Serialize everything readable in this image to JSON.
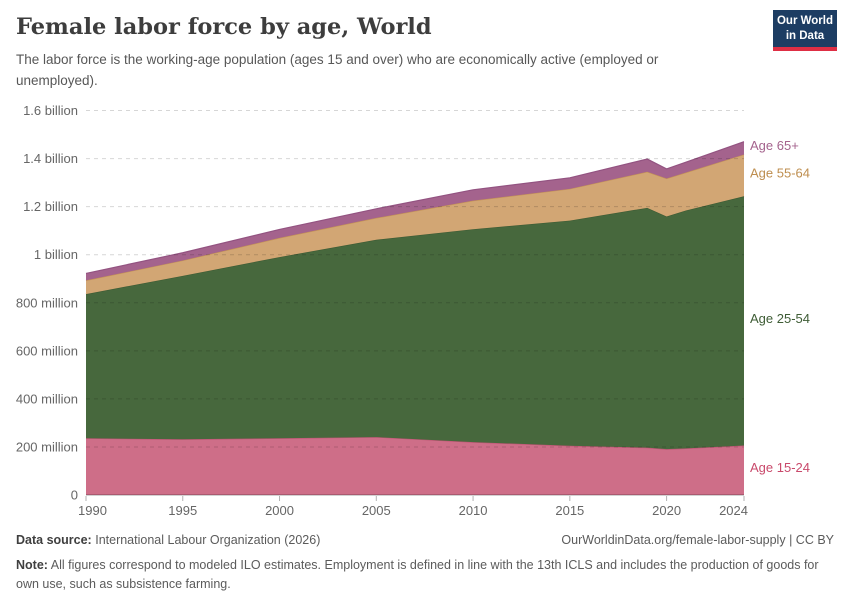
{
  "header": {
    "title": "Female labor force by age, World",
    "subtitle": "The labor force is the working-age population (ages 15 and over) who are economically active (employed or unemployed).",
    "logo": {
      "line1": "Our World",
      "line2": "in Data"
    }
  },
  "chart_data": {
    "type": "area",
    "stacked": true,
    "title": "Female labor force by age, World",
    "unit": "persons (millions)",
    "grid": true,
    "legend_position": "right-edge-labels",
    "xlim": [
      1990,
      2024
    ],
    "ylim_millions": [
      0,
      1600
    ],
    "x": [
      1990,
      1995,
      2000,
      2005,
      2010,
      2015,
      2019,
      2020,
      2021,
      2024
    ],
    "x_ticks": [
      1990,
      1995,
      2000,
      2005,
      2010,
      2015,
      2020,
      2024
    ],
    "y_ticks": [
      {
        "value": 0,
        "label": "0"
      },
      {
        "value": 200,
        "label": "200 million"
      },
      {
        "value": 400,
        "label": "400 million"
      },
      {
        "value": 600,
        "label": "600 million"
      },
      {
        "value": 800,
        "label": "800 million"
      },
      {
        "value": 1000,
        "label": "1 billion"
      },
      {
        "value": 1200,
        "label": "1.2 billion"
      },
      {
        "value": 1400,
        "label": "1.4 billion"
      },
      {
        "value": 1600,
        "label": "1.6 billion"
      }
    ],
    "series": [
      {
        "name": "Age 15-24",
        "id": "age-15-24",
        "color": "#CE6E88",
        "stroke": "#BC5472",
        "label_color": "#C9496B",
        "values_millions": [
          236,
          232,
          236,
          241,
          220,
          205,
          197,
          191,
          194,
          206
        ]
      },
      {
        "name": "Age 25-54",
        "id": "age-25-54",
        "color": "#47683D",
        "stroke": "#3D5A34",
        "label_color": "#3E5C35",
        "values_millions": [
          600,
          680,
          754,
          821,
          886,
          937,
          998,
          968,
          990,
          1037
        ]
      },
      {
        "name": "Age 55-64",
        "id": "age-55-64",
        "color": "#D2A674",
        "stroke": "#C49355",
        "label_color": "#BE8E4F",
        "values_millions": [
          57,
          64,
          80,
          91,
          119,
          132,
          150,
          158,
          158,
          174
        ]
      },
      {
        "name": "Age 65+",
        "id": "age-65plus",
        "color": "#A4638D",
        "stroke": "#935381",
        "label_color": "#A4638D",
        "values_millions": [
          29,
          32,
          35,
          38,
          45,
          46,
          53,
          40,
          43,
          53
        ]
      }
    ]
  },
  "footer": {
    "source_label": "Data source:",
    "source_value": "International Labour Organization (2026)",
    "url": "OurWorldinData.org/female-labor-supply",
    "separator": "|",
    "license": "CC BY",
    "note_label": "Note:",
    "note_text": "All figures correspond to modeled ILO estimates. Employment is defined in line with the 13th ICLS and includes the production of goods for own use, such as subsistence farming."
  }
}
